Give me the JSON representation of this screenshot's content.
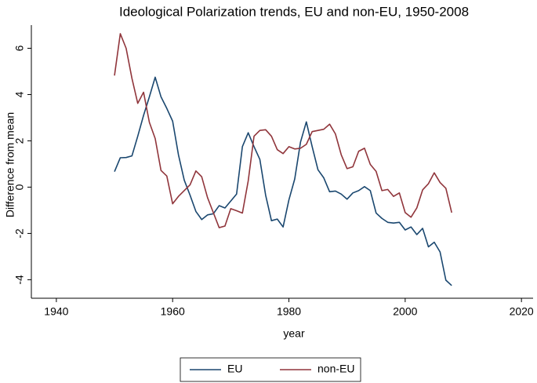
{
  "chart_data": {
    "type": "line",
    "title": "Ideological Polarization trends, EU and non-EU, 1950-2008",
    "x_label": "year",
    "y_label": "Difference from mean",
    "x": [
      1950,
      1951,
      1952,
      1953,
      1954,
      1955,
      1956,
      1957,
      1958,
      1959,
      1960,
      1961,
      1962,
      1963,
      1964,
      1965,
      1966,
      1967,
      1968,
      1969,
      1970,
      1971,
      1972,
      1973,
      1974,
      1975,
      1976,
      1977,
      1978,
      1979,
      1980,
      1981,
      1982,
      1983,
      1984,
      1985,
      1986,
      1987,
      1988,
      1989,
      1990,
      1991,
      1992,
      1993,
      1994,
      1995,
      1996,
      1997,
      1998,
      1999,
      2000,
      2001,
      2002,
      2003,
      2004,
      2005,
      2006,
      2007,
      2008
    ],
    "series": [
      {
        "name": "EU",
        "color": "#1a476f",
        "values": [
          0.67,
          1.27,
          1.28,
          1.35,
          2.2,
          3.1,
          3.9,
          4.75,
          3.9,
          3.4,
          2.85,
          1.4,
          0.3,
          -0.35,
          -1.05,
          -1.4,
          -1.2,
          -1.15,
          -0.8,
          -0.9,
          -0.6,
          -0.3,
          1.75,
          2.35,
          1.75,
          1.2,
          -0.35,
          -1.45,
          -1.38,
          -1.72,
          -0.55,
          0.35,
          1.95,
          2.82,
          1.75,
          0.75,
          0.4,
          -0.2,
          -0.17,
          -0.3,
          -0.52,
          -0.25,
          -0.15,
          0.02,
          -0.15,
          -1.12,
          -1.35,
          -1.52,
          -1.55,
          -1.52,
          -1.85,
          -1.72,
          -2.05,
          -1.78,
          -2.58,
          -2.38,
          -2.8,
          -4.02,
          -4.25
        ]
      },
      {
        "name": "non-EU",
        "color": "#90353b",
        "values": [
          4.82,
          6.63,
          6.0,
          4.7,
          3.62,
          4.1,
          2.8,
          2.1,
          0.72,
          0.48,
          -0.72,
          -0.4,
          -0.15,
          0.1,
          0.7,
          0.45,
          -0.45,
          -1.1,
          -1.75,
          -1.68,
          -0.93,
          -1.02,
          -1.12,
          0.27,
          2.2,
          2.45,
          2.48,
          2.2,
          1.62,
          1.45,
          1.75,
          1.65,
          1.68,
          1.85,
          2.4,
          2.45,
          2.5,
          2.72,
          2.3,
          1.4,
          0.8,
          0.88,
          1.55,
          1.68,
          0.98,
          0.68,
          -0.15,
          -0.1,
          -0.4,
          -0.25,
          -1.1,
          -1.3,
          -0.9,
          -0.12,
          0.15,
          0.62,
          0.2,
          -0.05,
          -1.1
        ]
      }
    ],
    "xlim": [
      1935.7,
      2022
    ],
    "xticks": [
      1940,
      1960,
      1980,
      2000,
      2020
    ],
    "ylim": [
      -4.8,
      7
    ],
    "yticks": [
      -4,
      -2,
      0,
      2,
      4,
      6
    ],
    "grid": false,
    "legend": "bottom"
  }
}
